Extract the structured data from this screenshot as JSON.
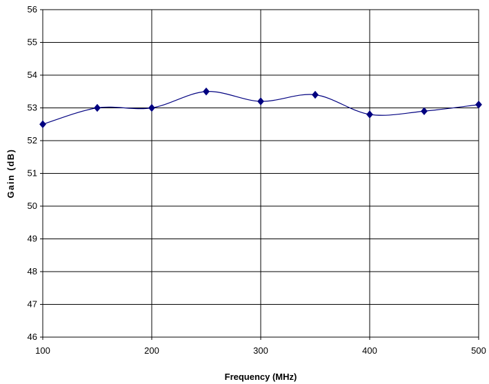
{
  "chart_data": {
    "type": "line",
    "title": "",
    "xlabel": "Frequency (MHz)",
    "ylabel": "Gain (dB)",
    "xlim": [
      100,
      500
    ],
    "ylim": [
      46,
      56
    ],
    "x_ticks": [
      100,
      200,
      300,
      400,
      500
    ],
    "y_ticks": [
      46,
      47,
      48,
      49,
      50,
      51,
      52,
      53,
      54,
      55,
      56
    ],
    "grid": {
      "vertical": true,
      "horizontal": true
    },
    "legend": "none",
    "series": [
      {
        "color": "#000080",
        "marker": "diamond",
        "smooth": true,
        "points": [
          {
            "x": 100,
            "y": 52.5
          },
          {
            "x": 150,
            "y": 53.0
          },
          {
            "x": 200,
            "y": 53.0
          },
          {
            "x": 250,
            "y": 53.5
          },
          {
            "x": 300,
            "y": 53.2
          },
          {
            "x": 350,
            "y": 53.4
          },
          {
            "x": 400,
            "y": 52.8
          },
          {
            "x": 450,
            "y": 52.9
          },
          {
            "x": 500,
            "y": 53.1
          }
        ]
      }
    ]
  }
}
